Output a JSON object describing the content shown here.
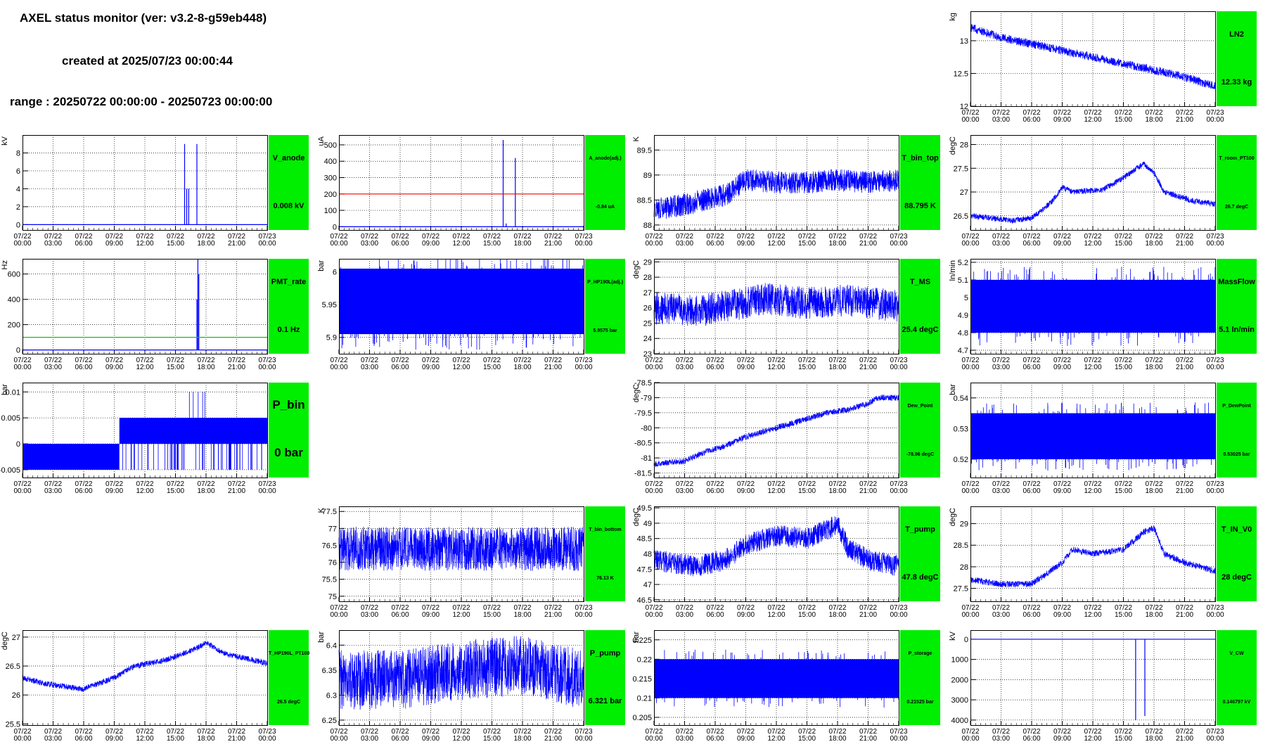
{
  "header": {
    "title": "AXEL status monitor (ver: v3.2-8-g59eb448)",
    "created": "created at 2025/07/23 00:00:44",
    "range": "range : 20250722 00:00:00 - 20250723 00:00:00"
  },
  "colors": {
    "data": "#0000ff",
    "badge": "#00ee00",
    "red_line": "#ff0000",
    "green_line": "#00cc00"
  },
  "time_labels": [
    "07/22 00:00",
    "07/22 03:00",
    "07/22 06:00",
    "07/22 09:00",
    "07/22 12:00",
    "07/22 15:00",
    "07/22 18:00",
    "07/22 21:00",
    "07/23 00:00"
  ],
  "chart_data": [
    {
      "id": "LN2",
      "type": "line",
      "col": 3,
      "row": 0,
      "ylabel": "kg",
      "yticks": [
        "12",
        "12.5",
        "13"
      ],
      "ylim": [
        12,
        13.45
      ],
      "badge_name": "LN2",
      "badge_value": "12.33 kg",
      "badge_size": "md",
      "series": {
        "kind": "trend",
        "points": [
          [
            0,
            13.2
          ],
          [
            3,
            13.05
          ],
          [
            6,
            12.95
          ],
          [
            9,
            12.85
          ],
          [
            12,
            12.75
          ],
          [
            15,
            12.65
          ],
          [
            18,
            12.55
          ],
          [
            21,
            12.45
          ],
          [
            24,
            12.3
          ]
        ],
        "noise": 0.13
      }
    },
    {
      "id": "V_anode",
      "type": "line",
      "col": 0,
      "row": 1,
      "ylabel": "kV",
      "yticks": [
        "0",
        "2",
        "4",
        "6",
        "8"
      ],
      "ylim": [
        -0.6,
        10
      ],
      "badge_name": "V_anode",
      "badge_value": "0.008 kV",
      "badge_size": "md",
      "series": {
        "kind": "flat",
        "base": 0,
        "noise": 0.05,
        "spikes": [
          [
            15.9,
            9
          ],
          [
            16.1,
            4
          ],
          [
            16.3,
            4
          ],
          [
            17.1,
            9
          ]
        ]
      }
    },
    {
      "id": "A_anode",
      "type": "line",
      "col": 1,
      "row": 1,
      "ylabel": "uA",
      "yticks": [
        "0",
        "100",
        "200",
        "300",
        "400",
        "500"
      ],
      "ylim": [
        -20,
        560
      ],
      "badge_name": "A_anode(adj.)",
      "badge_value": "-0.84 uA",
      "badge_size": "sm",
      "series": {
        "kind": "flat",
        "base": 0,
        "noise": 2,
        "spikes": [
          [
            16.1,
            530
          ],
          [
            16.4,
            20
          ],
          [
            17.3,
            420
          ]
        ]
      },
      "hline": {
        "y": 200,
        "color": "#ff0000"
      }
    },
    {
      "id": "T_bin_top",
      "type": "line",
      "col": 2,
      "row": 1,
      "ylabel": "K",
      "yticks": [
        "88",
        "88.5",
        "89",
        "89.5"
      ],
      "ylim": [
        87.9,
        89.8
      ],
      "badge_name": "T_bin_top",
      "badge_value": "88.795 K",
      "badge_size": "md",
      "series": {
        "kind": "trend",
        "points": [
          [
            0,
            88.3
          ],
          [
            4,
            88.45
          ],
          [
            7,
            88.6
          ],
          [
            9,
            88.9
          ],
          [
            12,
            88.85
          ],
          [
            15,
            88.85
          ],
          [
            18,
            88.9
          ],
          [
            21,
            88.85
          ],
          [
            24,
            88.9
          ]
        ],
        "noise": 0.45
      }
    },
    {
      "id": "T_room_PT100",
      "type": "line",
      "col": 3,
      "row": 1,
      "ylabel": "degC",
      "yticks": [
        "26.5",
        "27",
        "27.5",
        "28"
      ],
      "ylim": [
        26.2,
        28.2
      ],
      "badge_name": "T_room_PT100",
      "badge_value": "26.7 degC",
      "badge_size": "sm",
      "series": {
        "kind": "trend",
        "points": [
          [
            0,
            26.5
          ],
          [
            4,
            26.4
          ],
          [
            6,
            26.45
          ],
          [
            8,
            26.8
          ],
          [
            9,
            27.1
          ],
          [
            10,
            27.0
          ],
          [
            13,
            27.05
          ],
          [
            15,
            27.3
          ],
          [
            17,
            27.6
          ],
          [
            18,
            27.4
          ],
          [
            19,
            27.0
          ],
          [
            22,
            26.8
          ],
          [
            24,
            26.75
          ]
        ],
        "noise": 0.12
      }
    },
    {
      "id": "PMT_rate",
      "type": "line",
      "col": 0,
      "row": 2,
      "ylabel": "Hz",
      "yticks": [
        "0",
        "200",
        "400",
        "600"
      ],
      "ylim": [
        -30,
        720
      ],
      "badge_name": "PMT_rate",
      "badge_value": "0.1 Hz",
      "badge_size": "md",
      "series": {
        "kind": "flat",
        "base": 0,
        "noise": 2,
        "spikes": [
          [
            17.1,
            400
          ],
          [
            17.2,
            720
          ],
          [
            17.3,
            600
          ]
        ]
      },
      "hline": {
        "y": 100,
        "color": "#00cc00"
      }
    },
    {
      "id": "P_HP190L",
      "type": "line",
      "col": 1,
      "row": 2,
      "ylabel": "bar",
      "yticks": [
        "5.9",
        "5.95",
        "6"
      ],
      "ylim": [
        5.875,
        6.02
      ],
      "badge_name": "P_HP190L(adj.)",
      "badge_value": "5.9575 bar",
      "badge_size": "sm",
      "series": {
        "kind": "band",
        "low": 5.905,
        "high": 6.005,
        "mid_low": 5.93,
        "mid_high": 5.985
      }
    },
    {
      "id": "T_MS",
      "type": "line",
      "col": 2,
      "row": 2,
      "ylabel": "degC",
      "yticks": [
        "23",
        "24",
        "25",
        "26",
        "27",
        "28",
        "29"
      ],
      "ylim": [
        23,
        29.2
      ],
      "badge_name": "T_MS",
      "badge_value": "25.4 degC",
      "badge_size": "md",
      "series": {
        "kind": "trend",
        "points": [
          [
            0,
            26.0
          ],
          [
            4,
            25.8
          ],
          [
            8,
            26.2
          ],
          [
            11,
            26.6
          ],
          [
            15,
            26.3
          ],
          [
            19,
            26.5
          ],
          [
            24,
            26.1
          ]
        ],
        "noise": 2.1
      }
    },
    {
      "id": "MassFlow",
      "type": "line",
      "col": 3,
      "row": 2,
      "ylabel": "ln/min",
      "yticks": [
        "4.7",
        "4.8",
        "4.9",
        "5",
        "5.1",
        "5.2"
      ],
      "ylim": [
        4.68,
        5.22
      ],
      "badge_name": "MassFlow",
      "badge_value": "5.1 ln/min",
      "badge_size": "md",
      "series": {
        "kind": "band",
        "low": 4.8,
        "high": 5.1,
        "mid_low": 4.8,
        "mid_high": 5.1
      }
    },
    {
      "id": "P_bin",
      "type": "line",
      "col": 0,
      "row": 3,
      "ylabel": "bar",
      "yticks": [
        "-0.005",
        "0",
        "0.005",
        "0.01"
      ],
      "ylim": [
        -0.0065,
        0.0118
      ],
      "badge_name": "P_bin",
      "badge_value": "0 bar",
      "badge_size": "lg",
      "series": {
        "kind": "twolevel",
        "switch": 9.5,
        "a_low": -0.005,
        "a_high": 0,
        "b_low": 0,
        "b_high": 0.005
      }
    },
    {
      "id": "Dew_Point",
      "type": "line",
      "col": 2,
      "row": 3,
      "ylabel": "degC",
      "yticks": [
        "-81.5",
        "-81",
        "-80.5",
        "-80",
        "-79.5",
        "-79",
        "-78.5"
      ],
      "ylim": [
        -81.65,
        -78.5
      ],
      "badge_name": "Dew_Point",
      "badge_value": "-78.96 degC",
      "badge_size": "sm",
      "series": {
        "kind": "trend",
        "points": [
          [
            0,
            -81.2
          ],
          [
            3,
            -81.1
          ],
          [
            5,
            -80.8
          ],
          [
            7,
            -80.6
          ],
          [
            9,
            -80.3
          ],
          [
            12,
            -80.0
          ],
          [
            14,
            -79.8
          ],
          [
            17,
            -79.5
          ],
          [
            19,
            -79.4
          ],
          [
            21,
            -79.2
          ],
          [
            22,
            -79.0
          ],
          [
            24,
            -79.0
          ]
        ],
        "noise": 0.2
      }
    },
    {
      "id": "P_DewPoint",
      "type": "line",
      "col": 3,
      "row": 3,
      "ylabel": "bar",
      "yticks": [
        "0.52",
        "0.53",
        "0.54"
      ],
      "ylim": [
        0.514,
        0.545
      ],
      "badge_name": "P_DewPoint",
      "badge_value": "0.53025 bar",
      "badge_size": "sm",
      "series": {
        "kind": "band",
        "low": 0.52,
        "high": 0.535,
        "mid_low": 0.525,
        "mid_high": 0.54
      }
    },
    {
      "id": "T_bin_bottom",
      "type": "line",
      "col": 1,
      "row": 4,
      "ylabel": "K",
      "yticks": [
        "75",
        "75.5",
        "76",
        "76.5",
        "77",
        "77.5"
      ],
      "ylim": [
        74.85,
        77.65
      ],
      "badge_name": "T_bin_bottom",
      "badge_value": "76.13 K",
      "badge_size": "sm",
      "series": {
        "kind": "trend",
        "points": [
          [
            0,
            76.4
          ],
          [
            24,
            76.4
          ]
        ],
        "noise": 1.3
      }
    },
    {
      "id": "T_pump",
      "type": "line",
      "col": 2,
      "row": 4,
      "ylabel": "degC",
      "yticks": [
        "46.5",
        "47",
        "47.5",
        "48",
        "48.5",
        "49",
        "49.5"
      ],
      "ylim": [
        46.45,
        49.55
      ],
      "badge_name": "T_pump",
      "badge_value": "47.8 degC",
      "badge_size": "md",
      "series": {
        "kind": "trend",
        "points": [
          [
            0,
            47.8
          ],
          [
            4,
            47.6
          ],
          [
            7,
            47.8
          ],
          [
            9,
            48.3
          ],
          [
            12,
            48.6
          ],
          [
            15,
            48.5
          ],
          [
            17,
            48.8
          ],
          [
            18,
            49.0
          ],
          [
            19,
            48.2
          ],
          [
            21,
            47.8
          ],
          [
            24,
            47.6
          ]
        ],
        "noise": 0.7
      }
    },
    {
      "id": "T_IN_V0",
      "type": "line",
      "col": 3,
      "row": 4,
      "ylabel": "degC",
      "yticks": [
        "27.5",
        "28",
        "28.5",
        "29"
      ],
      "ylim": [
        27.2,
        29.4
      ],
      "badge_name": "T_IN_V0",
      "badge_value": "28 degC",
      "badge_size": "md",
      "series": {
        "kind": "trend",
        "points": [
          [
            0,
            27.7
          ],
          [
            3,
            27.6
          ],
          [
            6,
            27.6
          ],
          [
            9,
            28.1
          ],
          [
            10,
            28.4
          ],
          [
            12,
            28.3
          ],
          [
            15,
            28.4
          ],
          [
            17,
            28.8
          ],
          [
            18,
            28.9
          ],
          [
            19,
            28.3
          ],
          [
            21,
            28.1
          ],
          [
            24,
            27.9
          ]
        ],
        "noise": 0.15
      }
    },
    {
      "id": "T_HP190L_PT100",
      "type": "line",
      "col": 0,
      "row": 5,
      "ylabel": "degC",
      "yticks": [
        "25.5",
        "26",
        "26.5",
        "27"
      ],
      "ylim": [
        25.48,
        27.12
      ],
      "badge_name": "T_HP190L_PT100",
      "badge_value": "26.5 degC",
      "badge_size": "sm",
      "series": {
        "kind": "trend",
        "points": [
          [
            0,
            26.3
          ],
          [
            2,
            26.2
          ],
          [
            6,
            26.1
          ],
          [
            9,
            26.3
          ],
          [
            11,
            26.5
          ],
          [
            14,
            26.6
          ],
          [
            17,
            26.8
          ],
          [
            18,
            26.9
          ],
          [
            20,
            26.7
          ],
          [
            24,
            26.55
          ]
        ],
        "noise": 0.1
      }
    },
    {
      "id": "P_pump",
      "type": "line",
      "col": 1,
      "row": 5,
      "ylabel": "bar",
      "yticks": [
        "6.25",
        "6.3",
        "6.35",
        "6.4"
      ],
      "ylim": [
        6.24,
        6.43
      ],
      "badge_name": "P_pump",
      "badge_value": "6.321 bar",
      "badge_size": "md",
      "series": {
        "kind": "trend",
        "points": [
          [
            0,
            6.33
          ],
          [
            6,
            6.33
          ],
          [
            12,
            6.35
          ],
          [
            18,
            6.36
          ],
          [
            24,
            6.33
          ]
        ],
        "noise": 0.12
      }
    },
    {
      "id": "P_storage",
      "type": "line",
      "col": 2,
      "row": 5,
      "ylabel": "bar",
      "yticks": [
        "0.205",
        "0.21",
        "0.215",
        "0.22",
        "0.225"
      ],
      "ylim": [
        0.203,
        0.2275
      ],
      "badge_name": "P_storage",
      "badge_value": "0.21525 bar",
      "badge_size": "sm",
      "series": {
        "kind": "band",
        "low": 0.21,
        "high": 0.22,
        "mid_low": 0.215,
        "mid_high": 0.22
      }
    },
    {
      "id": "V_CW",
      "type": "line",
      "col": 3,
      "row": 5,
      "ylabel": "kV",
      "yticks": [
        "4000",
        "3000",
        "2000",
        "1000",
        "0"
      ],
      "ylim": [
        4250,
        -450
      ],
      "badge_name": "V_CW",
      "badge_value": "0.146797 kV",
      "badge_size": "sm",
      "series": {
        "kind": "flat",
        "base": 0,
        "noise": 5,
        "spikes": [
          [
            16.2,
            4000
          ],
          [
            17.1,
            3800
          ]
        ]
      }
    }
  ]
}
